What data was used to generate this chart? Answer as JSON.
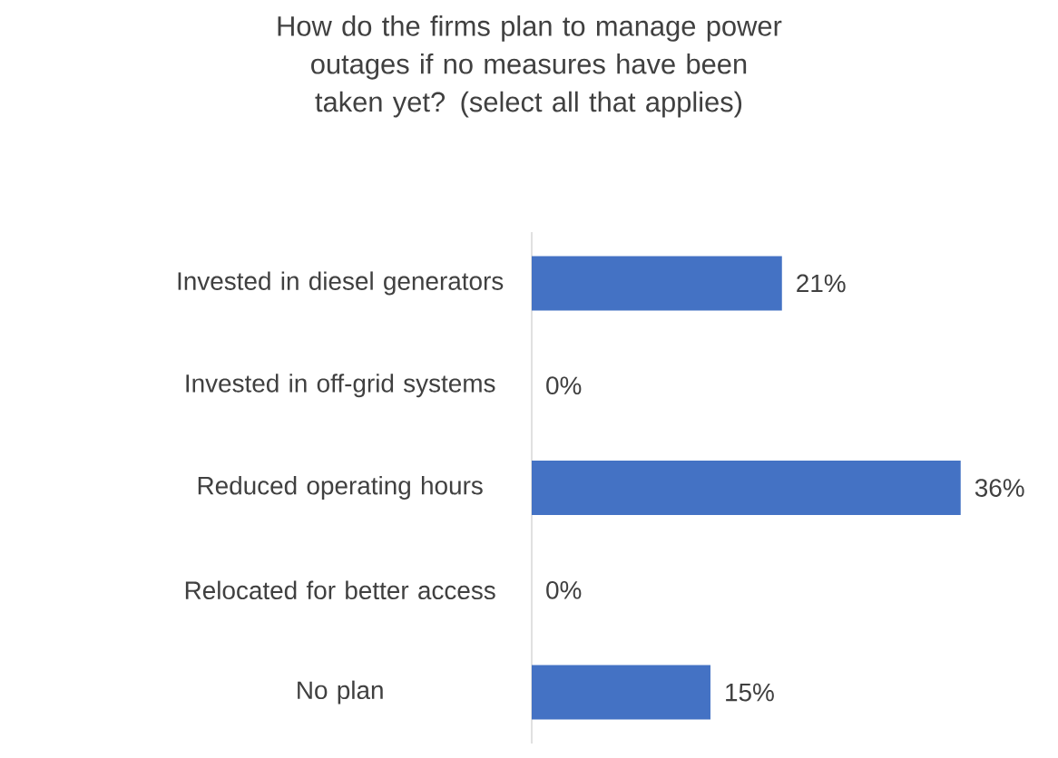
{
  "chart_data": {
    "type": "bar",
    "orientation": "horizontal",
    "title": "How do the firms plan to manage power outages if no measures have been taken yet? (select all that applies)",
    "categories": [
      "Invested in diesel generators",
      "Invested in off-grid systems",
      "Reduced operating hours",
      "Relocated for better access",
      "No plan"
    ],
    "values": [
      21,
      0,
      36,
      0,
      15
    ],
    "value_labels": [
      "21%",
      "0%",
      "36%",
      "0%",
      "15%"
    ],
    "color": "#4472c4"
  }
}
